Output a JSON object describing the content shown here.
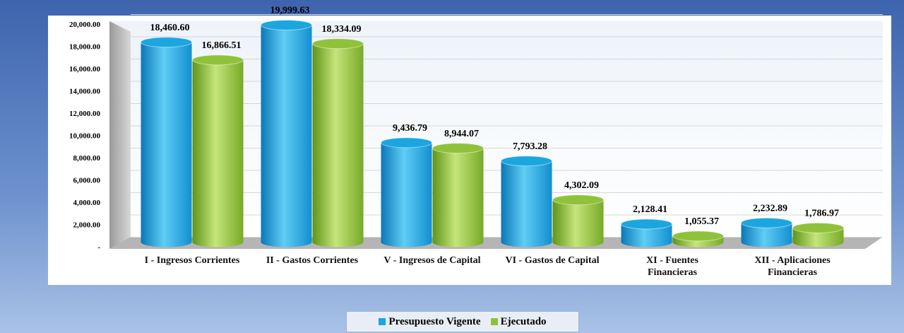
{
  "chart_data": {
    "type": "bar",
    "categories": [
      "I  - Ingresos Corrientes",
      "II  - Gastos Corrientes",
      "V - Ingresos de Capital",
      "VI  - Gastos de Capital",
      "XI - Fuentes\nFinancieras",
      "XII - Aplicaciones\nFinancieras"
    ],
    "series": [
      {
        "name": "Presupuesto Vigente",
        "color": "#1ba6e0",
        "values": [
          18460.6,
          19999.63,
          9436.79,
          7793.28,
          2128.41,
          2232.89
        ],
        "value_labels": [
          "18,460.60",
          "19,999.63",
          "9,436.79",
          "7,793.28",
          "2,128.41",
          "2,232.89"
        ]
      },
      {
        "name": "Ejecutado",
        "color": "#8fc23a",
        "values": [
          16866.51,
          18334.09,
          8944.07,
          4302.09,
          1055.37,
          1786.97
        ],
        "value_labels": [
          "16,866.51",
          "18,334.09",
          "8,944.07",
          "4,302.09",
          "1,055.37",
          "1,786.97"
        ]
      }
    ],
    "ylim": [
      0,
      20000
    ],
    "yticks": [
      {
        "value": 0,
        "label": "-"
      },
      {
        "value": 2000,
        "label": "2,000.00"
      },
      {
        "value": 4000,
        "label": "4,000.00"
      },
      {
        "value": 6000,
        "label": "6,000.00"
      },
      {
        "value": 8000,
        "label": "8,000.00"
      },
      {
        "value": 10000,
        "label": "10,000.00"
      },
      {
        "value": 12000,
        "label": "12,000.00"
      },
      {
        "value": 14000,
        "label": "14,000.00"
      },
      {
        "value": 16000,
        "label": "16,000.00"
      },
      {
        "value": 18000,
        "label": "18,000.00"
      },
      {
        "value": 20000,
        "label": "20,000.00"
      }
    ],
    "grid": true,
    "legend": "bottom"
  }
}
